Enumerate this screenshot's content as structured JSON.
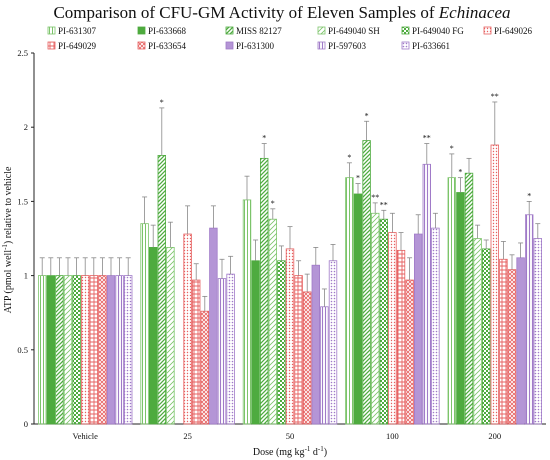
{
  "chart_data": {
    "type": "bar",
    "title": "Comparison of CFU-GM Activity of Eleven Samples of",
    "title_italic": "Echinacea",
    "xlabel": "Dose (mg kg",
    "xlabel_sup1": "-1",
    "xlabel_mid": " d",
    "xlabel_sup2": "-1",
    "xlabel_end": ")",
    "ylabel": "ATP (pmol well",
    "ylabel_sup": "-1",
    "ylabel_end": ") relative to vehicle",
    "ylim": [
      0,
      2.5
    ],
    "yticks": [
      "0",
      "0.5",
      "1",
      "1.5",
      "2",
      "2.5"
    ],
    "grid": false,
    "legend_position": "top",
    "categories": [
      "Vehicle",
      "25",
      "50",
      "100",
      "200"
    ],
    "series": [
      {
        "name": "PI-631307",
        "color": "#7cc46a",
        "pattern": "p-vert",
        "values": [
          1.0,
          1.35,
          1.51,
          1.66,
          1.66
        ],
        "errors": [
          0.12,
          0.18,
          0.16,
          0.1,
          0.16
        ],
        "sig": [
          "",
          "",
          "",
          "*",
          "*"
        ]
      },
      {
        "name": "PI-633668",
        "color": "#4eab3f",
        "pattern": "p-solid",
        "values": [
          1.0,
          1.19,
          1.1,
          1.55,
          1.56
        ],
        "errors": [
          0.12,
          0.15,
          0.14,
          0.07,
          0.1
        ],
        "sig": [
          "",
          "",
          "",
          "*",
          "*"
        ]
      },
      {
        "name": "MISS 82127",
        "color": "#4eab3f",
        "pattern": "p-diag",
        "values": [
          1.0,
          1.81,
          1.79,
          1.91,
          1.69
        ],
        "errors": [
          0.12,
          0.32,
          0.1,
          0.13,
          0.1
        ],
        "sig": [
          "",
          "*",
          "*",
          "*",
          ""
        ]
      },
      {
        "name": "PI-649040 SH",
        "color": "#7cc46a",
        "pattern": "p-diag-light",
        "values": [
          1.0,
          1.19,
          1.38,
          1.42,
          1.25
        ],
        "errors": [
          0.12,
          0.17,
          0.07,
          0.07,
          0.09
        ],
        "sig": [
          "",
          "",
          "*",
          "**",
          ""
        ]
      },
      {
        "name": "PI-649040 FG",
        "color": "#4eab3f",
        "pattern": "p-check",
        "values": [
          1.0,
          0.0,
          1.1,
          1.38,
          1.18
        ],
        "errors": [
          0.12,
          0.0,
          0.1,
          0.06,
          0.06
        ],
        "sig": [
          "",
          "",
          "",
          "**",
          ""
        ]
      },
      {
        "name": "PI-649026",
        "color": "#e66060",
        "pattern": "p-rdots",
        "values": [
          1.0,
          1.28,
          1.18,
          1.29,
          1.88
        ],
        "errors": [
          0.12,
          0.19,
          0.15,
          0.13,
          0.29
        ],
        "sig": [
          "",
          "",
          "",
          "",
          "**"
        ]
      },
      {
        "name": "PI-649029",
        "color": "#e66060",
        "pattern": "p-rgrid",
        "values": [
          1.0,
          0.97,
          1.0,
          1.17,
          1.11
        ],
        "errors": [
          0.12,
          0.11,
          0.1,
          0.12,
          0.12
        ],
        "sig": [
          "",
          "",
          "",
          "",
          ""
        ]
      },
      {
        "name": "PI-633654",
        "color": "#e66060",
        "pattern": "p-rdiag",
        "values": [
          1.0,
          0.76,
          0.89,
          0.97,
          1.04
        ],
        "errors": [
          0.12,
          0.1,
          0.12,
          0.15,
          0.1
        ],
        "sig": [
          "",
          "",
          "",
          "",
          ""
        ]
      },
      {
        "name": "PI-631300",
        "color": "#a07ac8",
        "pattern": "p-psolid",
        "values": [
          1.0,
          1.32,
          1.07,
          1.28,
          1.12
        ],
        "errors": [
          0.12,
          0.15,
          0.12,
          0.13,
          0.1
        ],
        "sig": [
          "",
          "",
          "",
          "",
          ""
        ]
      },
      {
        "name": "PI-597603",
        "color": "#a07ac8",
        "pattern": "p-pvert",
        "values": [
          1.0,
          0.98,
          0.79,
          1.75,
          1.41
        ],
        "errors": [
          0.12,
          0.13,
          0.12,
          0.14,
          0.09
        ],
        "sig": [
          "",
          "",
          "",
          "**",
          "*"
        ]
      },
      {
        "name": "PI-633661",
        "color": "#a07ac8",
        "pattern": "p-pdots",
        "values": [
          1.0,
          1.01,
          1.1,
          1.32,
          1.25
        ],
        "errors": [
          0.12,
          0.12,
          0.11,
          0.1,
          0.1
        ],
        "sig": [
          "",
          "",
          "",
          "",
          ""
        ]
      }
    ]
  }
}
